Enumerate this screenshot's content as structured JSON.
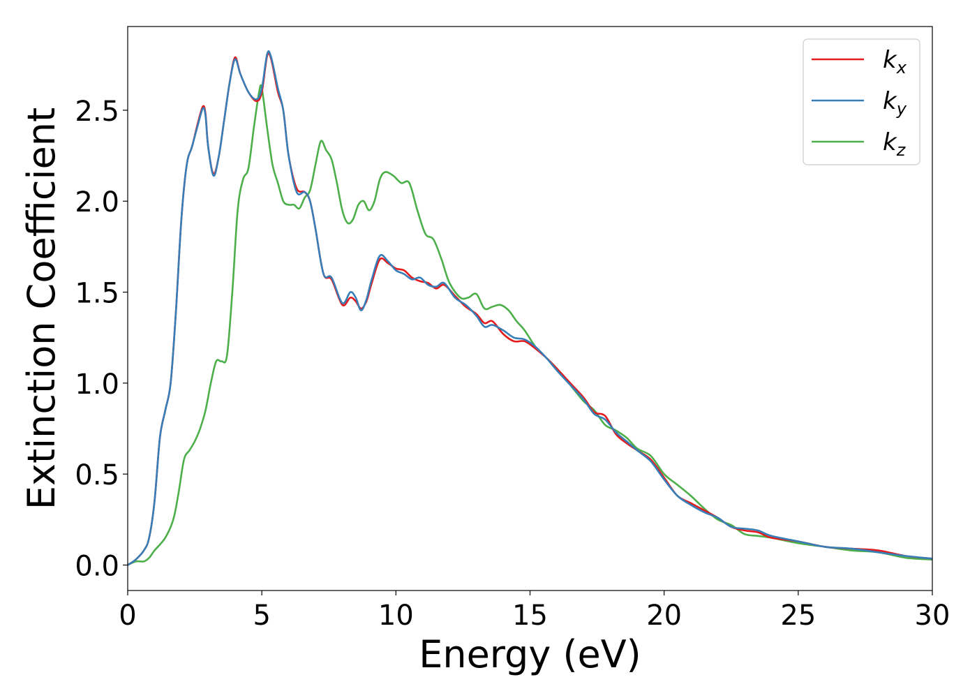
{
  "chart_data": {
    "type": "line",
    "xlabel": "Energy (eV)",
    "ylabel": "Extinction Coefficient",
    "xlim": [
      0,
      30
    ],
    "ylim": [
      -0.14,
      2.96
    ],
    "xticks": [
      0,
      5,
      10,
      15,
      20,
      25,
      30
    ],
    "xtick_labels": [
      "0",
      "5",
      "10",
      "15",
      "20",
      "25",
      "30"
    ],
    "yticks": [
      0.0,
      0.5,
      1.0,
      1.5,
      2.0,
      2.5
    ],
    "ytick_labels": [
      "0.0",
      "0.5",
      "1.0",
      "1.5",
      "2.0",
      "2.5"
    ],
    "grid": false,
    "legend_position": "top-right",
    "series": [
      {
        "name": "k_x",
        "legend_base": "k",
        "legend_sub": "x",
        "color": "#e41a1c",
        "points": [
          [
            0,
            0
          ],
          [
            0.3,
            0.03
          ],
          [
            0.6,
            0.08
          ],
          [
            0.8,
            0.15
          ],
          [
            1.0,
            0.35
          ],
          [
            1.2,
            0.7
          ],
          [
            1.4,
            0.85
          ],
          [
            1.6,
            1.0
          ],
          [
            1.8,
            1.4
          ],
          [
            2.0,
            1.9
          ],
          [
            2.2,
            2.2
          ],
          [
            2.4,
            2.3
          ],
          [
            2.6,
            2.42
          ],
          [
            2.8,
            2.52
          ],
          [
            2.9,
            2.48
          ],
          [
            3.0,
            2.3
          ],
          [
            3.2,
            2.15
          ],
          [
            3.4,
            2.25
          ],
          [
            3.6,
            2.45
          ],
          [
            3.8,
            2.65
          ],
          [
            4.0,
            2.79
          ],
          [
            4.2,
            2.7
          ],
          [
            4.5,
            2.6
          ],
          [
            4.8,
            2.55
          ],
          [
            5.0,
            2.6
          ],
          [
            5.2,
            2.8
          ],
          [
            5.35,
            2.78
          ],
          [
            5.6,
            2.6
          ],
          [
            5.8,
            2.5
          ],
          [
            6.0,
            2.25
          ],
          [
            6.3,
            2.07
          ],
          [
            6.6,
            2.05
          ],
          [
            6.8,
            2.0
          ],
          [
            7.0,
            1.85
          ],
          [
            7.3,
            1.6
          ],
          [
            7.6,
            1.57
          ],
          [
            8.0,
            1.43
          ],
          [
            8.3,
            1.47
          ],
          [
            8.5,
            1.45
          ],
          [
            8.7,
            1.41
          ],
          [
            8.9,
            1.45
          ],
          [
            9.1,
            1.55
          ],
          [
            9.4,
            1.68
          ],
          [
            9.7,
            1.66
          ],
          [
            10.0,
            1.63
          ],
          [
            10.3,
            1.62
          ],
          [
            10.6,
            1.58
          ],
          [
            10.9,
            1.56
          ],
          [
            11.2,
            1.55
          ],
          [
            11.5,
            1.52
          ],
          [
            11.8,
            1.54
          ],
          [
            12.2,
            1.48
          ],
          [
            12.6,
            1.42
          ],
          [
            13.0,
            1.38
          ],
          [
            13.3,
            1.33
          ],
          [
            13.6,
            1.34
          ],
          [
            14.0,
            1.27
          ],
          [
            14.4,
            1.23
          ],
          [
            14.8,
            1.23
          ],
          [
            15.2,
            1.19
          ],
          [
            15.6,
            1.14
          ],
          [
            16.0,
            1.08
          ],
          [
            16.5,
            1.0
          ],
          [
            17.0,
            0.92
          ],
          [
            17.4,
            0.84
          ],
          [
            17.8,
            0.82
          ],
          [
            18.2,
            0.72
          ],
          [
            18.6,
            0.67
          ],
          [
            19.0,
            0.63
          ],
          [
            19.5,
            0.58
          ],
          [
            20.0,
            0.48
          ],
          [
            20.5,
            0.38
          ],
          [
            21.0,
            0.34
          ],
          [
            21.5,
            0.3
          ],
          [
            22.0,
            0.26
          ],
          [
            22.5,
            0.21
          ],
          [
            23.0,
            0.19
          ],
          [
            23.5,
            0.18
          ],
          [
            24.0,
            0.15
          ],
          [
            25.0,
            0.13
          ],
          [
            26.0,
            0.1
          ],
          [
            27.0,
            0.09
          ],
          [
            28.0,
            0.08
          ],
          [
            29.0,
            0.05
          ],
          [
            30.0,
            0.035
          ]
        ]
      },
      {
        "name": "k_y",
        "legend_base": "k",
        "legend_sub": "y",
        "color": "#377eb8",
        "points": [
          [
            0,
            0
          ],
          [
            0.3,
            0.03
          ],
          [
            0.6,
            0.08
          ],
          [
            0.8,
            0.15
          ],
          [
            1.0,
            0.35
          ],
          [
            1.2,
            0.7
          ],
          [
            1.4,
            0.85
          ],
          [
            1.6,
            1.0
          ],
          [
            1.8,
            1.4
          ],
          [
            2.0,
            1.9
          ],
          [
            2.2,
            2.2
          ],
          [
            2.4,
            2.3
          ],
          [
            2.6,
            2.41
          ],
          [
            2.8,
            2.51
          ],
          [
            2.9,
            2.47
          ],
          [
            3.0,
            2.3
          ],
          [
            3.2,
            2.14
          ],
          [
            3.4,
            2.25
          ],
          [
            3.6,
            2.45
          ],
          [
            3.8,
            2.65
          ],
          [
            4.0,
            2.78
          ],
          [
            4.2,
            2.7
          ],
          [
            4.5,
            2.6
          ],
          [
            4.8,
            2.56
          ],
          [
            5.0,
            2.62
          ],
          [
            5.2,
            2.81
          ],
          [
            5.35,
            2.79
          ],
          [
            5.6,
            2.62
          ],
          [
            5.8,
            2.5
          ],
          [
            6.0,
            2.25
          ],
          [
            6.3,
            2.05
          ],
          [
            6.6,
            2.05
          ],
          [
            6.8,
            2.0
          ],
          [
            7.0,
            1.85
          ],
          [
            7.3,
            1.6
          ],
          [
            7.6,
            1.58
          ],
          [
            8.0,
            1.44
          ],
          [
            8.3,
            1.5
          ],
          [
            8.5,
            1.47
          ],
          [
            8.7,
            1.4
          ],
          [
            8.9,
            1.46
          ],
          [
            9.1,
            1.57
          ],
          [
            9.4,
            1.7
          ],
          [
            9.7,
            1.67
          ],
          [
            10.0,
            1.62
          ],
          [
            10.3,
            1.6
          ],
          [
            10.6,
            1.57
          ],
          [
            10.9,
            1.58
          ],
          [
            11.2,
            1.54
          ],
          [
            11.5,
            1.53
          ],
          [
            11.8,
            1.55
          ],
          [
            12.2,
            1.47
          ],
          [
            12.6,
            1.43
          ],
          [
            13.0,
            1.37
          ],
          [
            13.3,
            1.31
          ],
          [
            13.6,
            1.32
          ],
          [
            14.0,
            1.29
          ],
          [
            14.4,
            1.25
          ],
          [
            14.8,
            1.24
          ],
          [
            15.2,
            1.2
          ],
          [
            15.6,
            1.14
          ],
          [
            16.0,
            1.07
          ],
          [
            16.5,
            0.99
          ],
          [
            17.0,
            0.91
          ],
          [
            17.4,
            0.83
          ],
          [
            17.8,
            0.8
          ],
          [
            18.2,
            0.73
          ],
          [
            18.6,
            0.68
          ],
          [
            19.0,
            0.63
          ],
          [
            19.5,
            0.57
          ],
          [
            20.0,
            0.47
          ],
          [
            20.5,
            0.38
          ],
          [
            21.0,
            0.33
          ],
          [
            21.5,
            0.29
          ],
          [
            22.0,
            0.26
          ],
          [
            22.5,
            0.21
          ],
          [
            23.0,
            0.2
          ],
          [
            23.5,
            0.19
          ],
          [
            24.0,
            0.16
          ],
          [
            25.0,
            0.13
          ],
          [
            26.0,
            0.1
          ],
          [
            27.0,
            0.09
          ],
          [
            28.0,
            0.07
          ],
          [
            29.0,
            0.05
          ],
          [
            30.0,
            0.035
          ]
        ]
      },
      {
        "name": "k_z",
        "legend_base": "k",
        "legend_sub": "z",
        "color": "#4daf4a",
        "points": [
          [
            0,
            0
          ],
          [
            0.3,
            0.02
          ],
          [
            0.6,
            0.02
          ],
          [
            0.8,
            0.04
          ],
          [
            1.0,
            0.08
          ],
          [
            1.4,
            0.15
          ],
          [
            1.7,
            0.25
          ],
          [
            1.9,
            0.4
          ],
          [
            2.1,
            0.58
          ],
          [
            2.3,
            0.63
          ],
          [
            2.5,
            0.68
          ],
          [
            2.7,
            0.75
          ],
          [
            2.9,
            0.85
          ],
          [
            3.1,
            1.0
          ],
          [
            3.3,
            1.12
          ],
          [
            3.5,
            1.12
          ],
          [
            3.7,
            1.15
          ],
          [
            3.9,
            1.5
          ],
          [
            4.1,
            1.95
          ],
          [
            4.3,
            2.12
          ],
          [
            4.5,
            2.18
          ],
          [
            4.7,
            2.4
          ],
          [
            4.9,
            2.6
          ],
          [
            5.0,
            2.62
          ],
          [
            5.2,
            2.4
          ],
          [
            5.4,
            2.2
          ],
          [
            5.6,
            2.1
          ],
          [
            5.8,
            2.0
          ],
          [
            6.0,
            1.98
          ],
          [
            6.2,
            1.98
          ],
          [
            6.4,
            1.96
          ],
          [
            6.6,
            2.02
          ],
          [
            6.8,
            2.06
          ],
          [
            7.0,
            2.2
          ],
          [
            7.2,
            2.33
          ],
          [
            7.4,
            2.28
          ],
          [
            7.6,
            2.23
          ],
          [
            7.8,
            2.1
          ],
          [
            8.0,
            1.95
          ],
          [
            8.2,
            1.88
          ],
          [
            8.4,
            1.9
          ],
          [
            8.6,
            1.98
          ],
          [
            8.8,
            2.0
          ],
          [
            9.0,
            1.95
          ],
          [
            9.2,
            2.0
          ],
          [
            9.4,
            2.12
          ],
          [
            9.6,
            2.16
          ],
          [
            9.9,
            2.14
          ],
          [
            10.2,
            2.1
          ],
          [
            10.5,
            2.1
          ],
          [
            10.8,
            1.95
          ],
          [
            11.1,
            1.82
          ],
          [
            11.4,
            1.79
          ],
          [
            11.7,
            1.68
          ],
          [
            12.0,
            1.55
          ],
          [
            12.4,
            1.47
          ],
          [
            12.7,
            1.47
          ],
          [
            13.0,
            1.49
          ],
          [
            13.3,
            1.41
          ],
          [
            13.6,
            1.42
          ],
          [
            13.9,
            1.43
          ],
          [
            14.2,
            1.4
          ],
          [
            14.5,
            1.34
          ],
          [
            14.8,
            1.29
          ],
          [
            15.2,
            1.2
          ],
          [
            15.6,
            1.14
          ],
          [
            16.0,
            1.08
          ],
          [
            16.5,
            0.99
          ],
          [
            17.0,
            0.9
          ],
          [
            17.4,
            0.85
          ],
          [
            17.8,
            0.77
          ],
          [
            18.2,
            0.74
          ],
          [
            18.6,
            0.7
          ],
          [
            19.0,
            0.64
          ],
          [
            19.5,
            0.6
          ],
          [
            20.0,
            0.5
          ],
          [
            20.5,
            0.44
          ],
          [
            21.0,
            0.38
          ],
          [
            21.5,
            0.31
          ],
          [
            22.0,
            0.25
          ],
          [
            22.5,
            0.22
          ],
          [
            23.0,
            0.17
          ],
          [
            23.5,
            0.16
          ],
          [
            24.0,
            0.15
          ],
          [
            25.0,
            0.12
          ],
          [
            26.0,
            0.1
          ],
          [
            27.0,
            0.08
          ],
          [
            28.0,
            0.07
          ],
          [
            29.0,
            0.04
          ],
          [
            30.0,
            0.03
          ]
        ]
      }
    ]
  }
}
